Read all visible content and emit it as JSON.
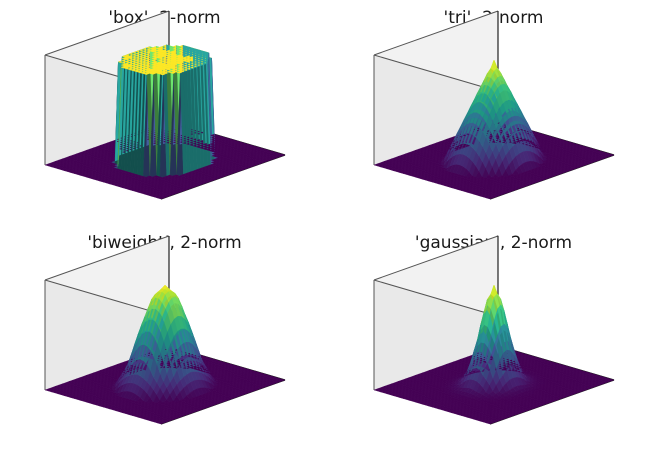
{
  "chart_data": [
    {
      "type": "surface",
      "title": "'box', 2-norm",
      "kernel": "box",
      "norm": "2-norm",
      "colormap": "viridis",
      "grid": false,
      "profile": {
        "r": [
          0,
          0.55,
          0.55,
          1.0
        ],
        "z": [
          1,
          1,
          0,
          0
        ]
      }
    },
    {
      "type": "surface",
      "title": "'tri', 2-norm",
      "kernel": "tri",
      "norm": "2-norm",
      "colormap": "viridis",
      "grid": false,
      "profile": {
        "r": [
          0,
          0.6,
          1.0
        ],
        "z": [
          1,
          0,
          0
        ]
      }
    },
    {
      "type": "surface",
      "title": "'biweight', 2-norm",
      "kernel": "biweight",
      "norm": "2-norm",
      "colormap": "viridis",
      "grid": false,
      "profile": {
        "r": [
          0,
          0.15,
          0.3,
          0.45,
          0.6,
          1.0
        ],
        "z": [
          1,
          0.88,
          0.56,
          0.19,
          0,
          0
        ]
      }
    },
    {
      "type": "surface",
      "title": "'gaussian', 2-norm",
      "kernel": "gaussian",
      "norm": "2-norm",
      "colormap": "viridis",
      "grid": false,
      "profile": {
        "r": [
          0,
          0.1,
          0.2,
          0.3,
          0.4,
          0.5,
          0.6,
          1.0
        ],
        "z": [
          1,
          0.82,
          0.45,
          0.17,
          0.04,
          0.01,
          0,
          0
        ]
      }
    }
  ],
  "colors": {
    "viridis_low": "#440154",
    "viridis_mid": "#21918c",
    "viridis_high": "#fde725"
  }
}
